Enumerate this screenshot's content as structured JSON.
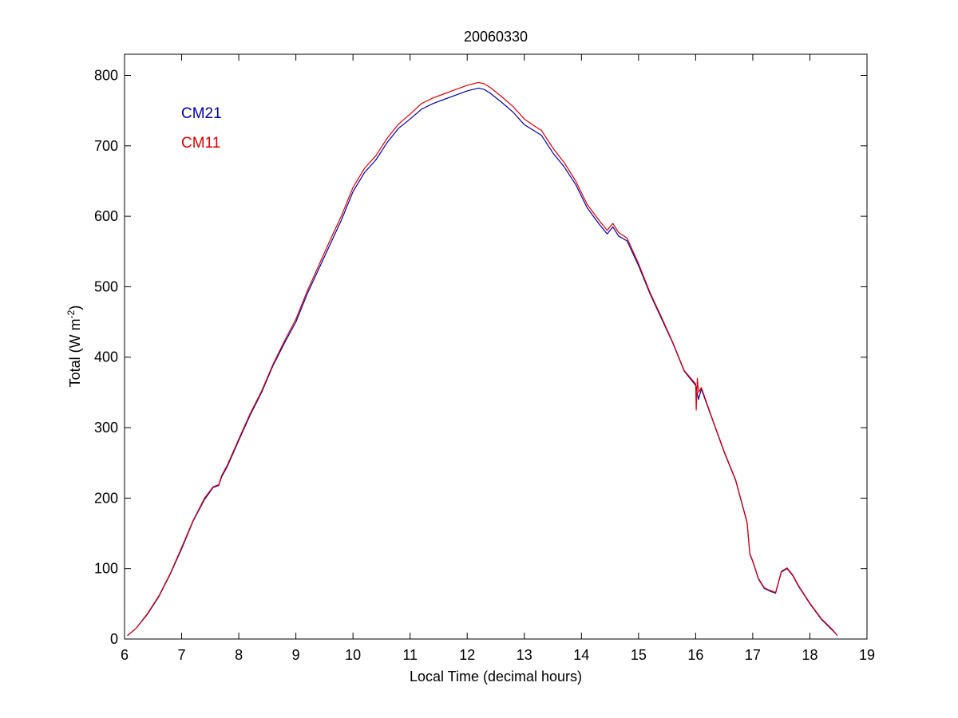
{
  "chart_data": {
    "type": "line",
    "title": "20060330",
    "xlabel": "Local Time (decimal hours)",
    "ylabel_main": "Total (W m",
    "ylabel_sup": "-2",
    "ylabel_close": ")",
    "xlim": [
      6,
      19
    ],
    "ylim": [
      0,
      830
    ],
    "xticks": [
      6,
      7,
      8,
      9,
      10,
      11,
      12,
      13,
      14,
      15,
      16,
      17,
      18,
      19
    ],
    "yticks": [
      0,
      100,
      200,
      300,
      400,
      500,
      600,
      700,
      800
    ],
    "grid": false,
    "legend_position": "top-left",
    "series": [
      {
        "name": "CM21",
        "color": "#0000aa",
        "x": [
          6.05,
          6.2,
          6.4,
          6.6,
          6.8,
          7.0,
          7.2,
          7.4,
          7.55,
          7.65,
          7.7,
          7.8,
          8.0,
          8.2,
          8.4,
          8.6,
          8.8,
          9.0,
          9.2,
          9.4,
          9.6,
          9.8,
          10.0,
          10.2,
          10.4,
          10.6,
          10.8,
          11.0,
          11.2,
          11.4,
          11.6,
          11.8,
          12.0,
          12.2,
          12.3,
          12.4,
          12.6,
          12.8,
          13.0,
          13.2,
          13.3,
          13.5,
          13.7,
          13.9,
          14.1,
          14.3,
          14.45,
          14.55,
          14.65,
          14.8,
          15.0,
          15.2,
          15.4,
          15.6,
          15.8,
          16.0,
          16.05,
          16.1,
          16.3,
          16.5,
          16.7,
          16.9,
          16.95,
          17.0,
          17.1,
          17.2,
          17.3,
          17.4,
          17.45,
          17.5,
          17.6,
          17.7,
          17.8,
          18.0,
          18.2,
          18.4,
          18.48
        ],
        "y": [
          5,
          15,
          35,
          60,
          92,
          128,
          167,
          198,
          215,
          218,
          230,
          245,
          282,
          318,
          350,
          388,
          420,
          450,
          490,
          525,
          560,
          595,
          635,
          662,
          680,
          705,
          725,
          738,
          752,
          760,
          766,
          772,
          778,
          782,
          780,
          775,
          762,
          748,
          730,
          720,
          715,
          690,
          670,
          645,
          612,
          590,
          575,
          585,
          572,
          565,
          530,
          490,
          455,
          420,
          380,
          360,
          340,
          355,
          310,
          265,
          225,
          165,
          120,
          110,
          85,
          72,
          68,
          65,
          80,
          95,
          100,
          90,
          75,
          50,
          28,
          12,
          5
        ]
      },
      {
        "name": "CM11",
        "color": "#dd0000",
        "x": [
          6.05,
          6.2,
          6.4,
          6.6,
          6.8,
          7.0,
          7.2,
          7.4,
          7.55,
          7.65,
          7.7,
          7.8,
          8.0,
          8.2,
          8.4,
          8.6,
          8.8,
          9.0,
          9.2,
          9.4,
          9.6,
          9.8,
          10.0,
          10.2,
          10.4,
          10.6,
          10.8,
          11.0,
          11.2,
          11.4,
          11.6,
          11.8,
          12.0,
          12.2,
          12.3,
          12.4,
          12.6,
          12.8,
          13.0,
          13.2,
          13.3,
          13.5,
          13.7,
          13.9,
          14.1,
          14.3,
          14.45,
          14.55,
          14.65,
          14.8,
          15.0,
          15.2,
          15.4,
          15.6,
          15.8,
          16.0,
          16.01,
          16.03,
          16.05,
          16.1,
          16.3,
          16.5,
          16.7,
          16.9,
          16.95,
          17.0,
          17.1,
          17.2,
          17.3,
          17.4,
          17.45,
          17.5,
          17.6,
          17.7,
          17.8,
          18.0,
          18.2,
          18.4,
          18.48
        ],
        "y": [
          5,
          15,
          36,
          61,
          93,
          130,
          168,
          200,
          216,
          219,
          232,
          247,
          284,
          320,
          352,
          390,
          423,
          454,
          494,
          530,
          566,
          601,
          641,
          668,
          686,
          711,
          731,
          745,
          760,
          768,
          774,
          780,
          786,
          790,
          788,
          783,
          770,
          756,
          738,
          727,
          722,
          697,
          676,
          650,
          617,
          595,
          580,
          590,
          577,
          569,
          533,
          492,
          457,
          421,
          381,
          362,
          325,
          370,
          350,
          357,
          311,
          266,
          226,
          166,
          121,
          111,
          86,
          73,
          69,
          66,
          81,
          96,
          101,
          91,
          76,
          51,
          29,
          13,
          5
        ]
      }
    ]
  }
}
